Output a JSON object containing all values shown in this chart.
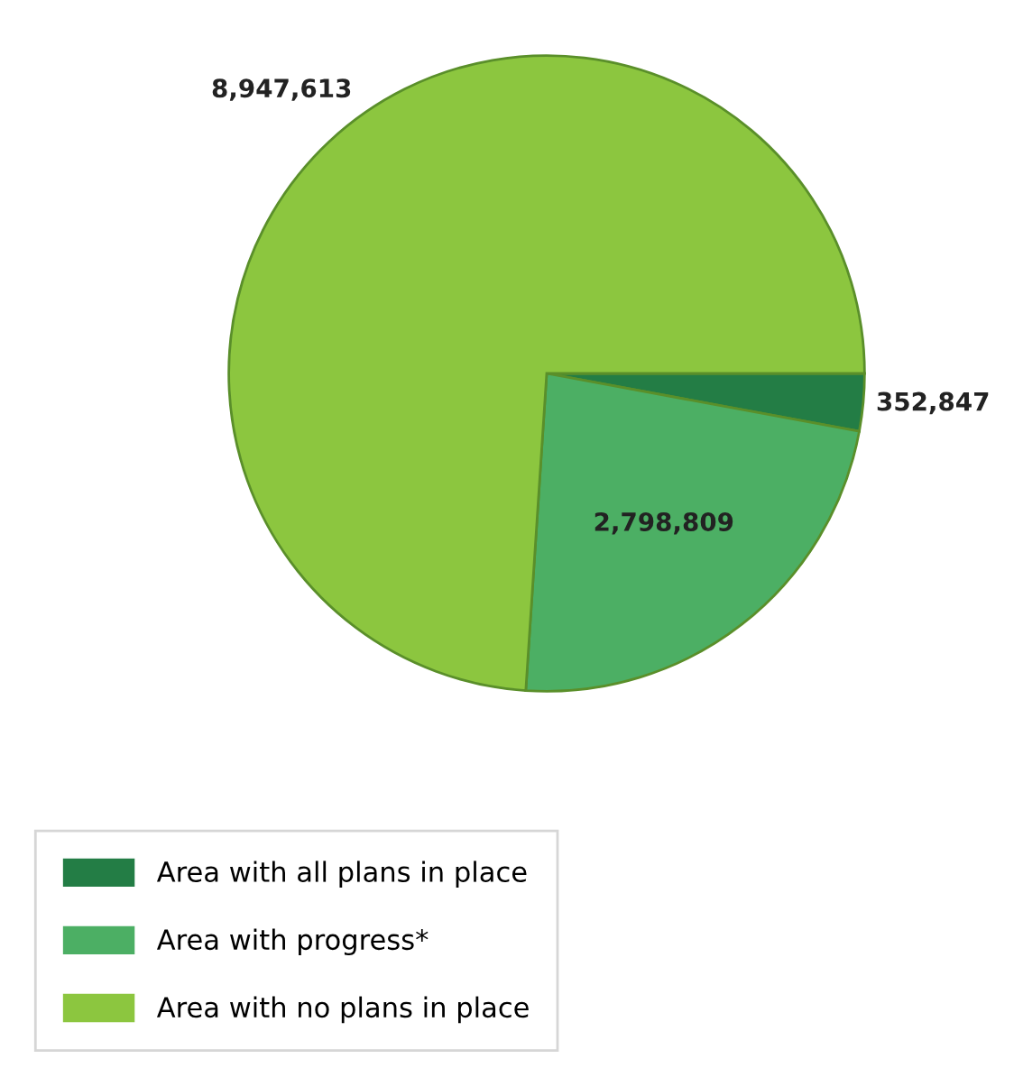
{
  "chart_data": {
    "type": "pie",
    "categories": [
      "Area with all plans in place",
      "Area with progress*",
      "Area with no plans in place"
    ],
    "values": [
      352847,
      2798809,
      8947613
    ],
    "colors": [
      "#237d45",
      "#4caf64",
      "#8cc63f"
    ],
    "value_labels": [
      "352,847",
      "2,798,809",
      "8,947,613"
    ],
    "legend": "bottom left"
  }
}
